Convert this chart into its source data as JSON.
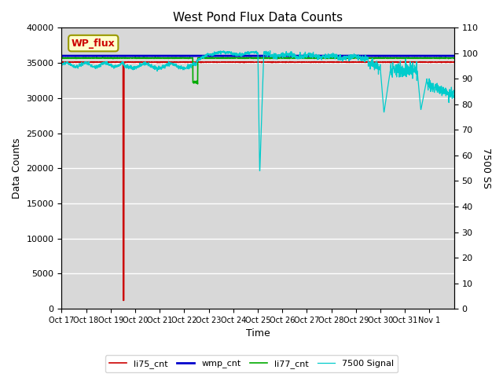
{
  "title": "West Pond Flux Data Counts",
  "xlabel": "Time",
  "ylabel_left": "Data Counts",
  "ylabel_right": "7500 SS",
  "ylim_left": [
    0,
    40000
  ],
  "ylim_right": [
    0,
    110
  ],
  "yticks_left": [
    0,
    5000,
    10000,
    15000,
    20000,
    25000,
    30000,
    35000,
    40000
  ],
  "yticks_right": [
    0,
    10,
    20,
    30,
    40,
    50,
    60,
    70,
    80,
    90,
    100,
    110
  ],
  "xtick_labels": [
    "Oct 17",
    "Oct 18",
    "Oct 19",
    "Oct 20",
    "Oct 21",
    "Oct 22",
    "Oct 23",
    "Oct 24",
    "Oct 25",
    "Oct 26",
    "Oct 27",
    "Oct 28",
    "Oct 29",
    "Oct 30",
    "Oct 31",
    "Nov 1"
  ],
  "annotation_box": "WP_flux",
  "legend_labels": [
    "li75_cnt",
    "wmp_cnt",
    "li77_cnt",
    "7500 Signal"
  ],
  "legend_colors": [
    "#cc0000",
    "#0000cc",
    "#00aa00",
    "#00cccc"
  ],
  "background_color": "#d8d8d8",
  "wmp_cnt_value": 36000,
  "li77_cnt_base": 35700,
  "li75_cnt_base": 35100,
  "signal_base": 97.5,
  "figwidth": 6.4,
  "figheight": 4.8,
  "dpi": 100
}
